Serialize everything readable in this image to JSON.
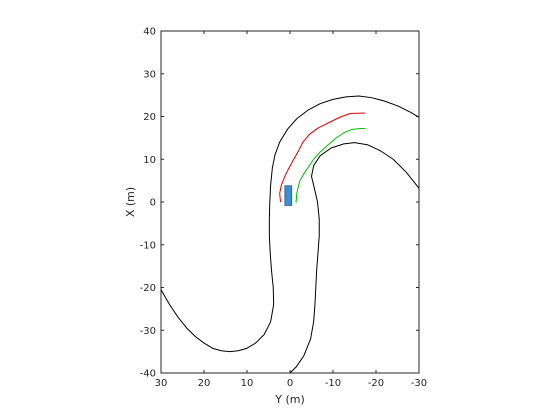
{
  "chart_data": {
    "type": "line",
    "xlabel": "Y (m)",
    "ylabel": "X (m)",
    "xlim": [
      30,
      -30
    ],
    "ylim": [
      -40,
      40
    ],
    "x_reversed": true,
    "grid": false,
    "box": true,
    "xticks": [
      30,
      20,
      10,
      0,
      -10,
      -20,
      -30
    ],
    "yticks": [
      -40,
      -30,
      -20,
      -10,
      0,
      10,
      20,
      30,
      40
    ],
    "series": [
      {
        "role": "road-edge-left",
        "color": "#000000",
        "points": [
          [
            30,
            -20.5
          ],
          [
            28,
            -24
          ],
          [
            26,
            -27
          ],
          [
            24,
            -29.5
          ],
          [
            22,
            -31.5
          ],
          [
            20,
            -33
          ],
          [
            18,
            -34.2
          ],
          [
            16,
            -34.8
          ],
          [
            14,
            -35
          ],
          [
            12,
            -34.8
          ],
          [
            10,
            -34.2
          ],
          [
            8,
            -33
          ],
          [
            6,
            -31
          ],
          [
            4.5,
            -28
          ],
          [
            3.8,
            -24
          ],
          [
            3.9,
            -20
          ],
          [
            4.3,
            -16
          ],
          [
            4.6,
            -12
          ],
          [
            4.8,
            -8
          ],
          [
            4.8,
            -4
          ],
          [
            4.7,
            0
          ],
          [
            4.5,
            4
          ],
          [
            4.1,
            8
          ],
          [
            3.5,
            11
          ],
          [
            2.4,
            14
          ],
          [
            0.6,
            17
          ],
          [
            -1.6,
            19.5
          ],
          [
            -4.2,
            21.5
          ],
          [
            -7,
            23
          ],
          [
            -10,
            24
          ],
          [
            -13,
            24.6
          ],
          [
            -16,
            24.8
          ],
          [
            -19,
            24.4
          ],
          [
            -22,
            23.6
          ],
          [
            -25,
            22.5
          ],
          [
            -28,
            21
          ],
          [
            -30,
            19.8
          ]
        ]
      },
      {
        "role": "road-edge-right",
        "color": "#000000",
        "points": [
          [
            0,
            -40
          ],
          [
            -1.5,
            -38.5
          ],
          [
            -3.2,
            -36
          ],
          [
            -4.8,
            -32
          ],
          [
            -5.5,
            -28
          ],
          [
            -5.8,
            -24
          ],
          [
            -6,
            -20
          ],
          [
            -6.2,
            -16
          ],
          [
            -6.5,
            -12
          ],
          [
            -6.8,
            -8
          ],
          [
            -6.8,
            -4
          ],
          [
            -6.4,
            0
          ],
          [
            -5.6,
            3.5
          ],
          [
            -5,
            6
          ],
          [
            -5.5,
            8.5
          ],
          [
            -7,
            10.8
          ],
          [
            -9.5,
            12.6
          ],
          [
            -12.5,
            13.6
          ],
          [
            -15,
            13.9
          ],
          [
            -18,
            13.4
          ],
          [
            -21,
            12
          ],
          [
            -24,
            10
          ],
          [
            -27,
            7
          ],
          [
            -29,
            4.5
          ],
          [
            -30,
            3.2
          ]
        ]
      },
      {
        "role": "predicted-path",
        "color": "#e00000",
        "points": [
          [
            2.2,
            0
          ],
          [
            2.4,
            2
          ],
          [
            2,
            4
          ],
          [
            1,
            6.5
          ],
          [
            -0.6,
            9.5
          ],
          [
            -2,
            12
          ],
          [
            -3,
            14
          ],
          [
            -4.5,
            15.8
          ],
          [
            -6.5,
            17.3
          ],
          [
            -9.5,
            18.8
          ],
          [
            -12,
            20
          ],
          [
            -14,
            20.7
          ],
          [
            -16.5,
            20.8
          ],
          [
            -17.5,
            20.8
          ]
        ]
      },
      {
        "role": "reference-path",
        "color": "#00c000",
        "points": [
          [
            -1.4,
            -0.2
          ],
          [
            -1.6,
            2.2
          ],
          [
            -2.3,
            5
          ],
          [
            -3.8,
            7.5
          ],
          [
            -5.5,
            10
          ],
          [
            -7,
            11.7
          ],
          [
            -8.8,
            13.3
          ],
          [
            -10.5,
            14.8
          ],
          [
            -12.5,
            16.2
          ],
          [
            -14.5,
            17
          ],
          [
            -16.5,
            17.2
          ],
          [
            -17.5,
            17.2
          ]
        ]
      }
    ],
    "vehicle": {
      "x_center": 0.4,
      "y_center": 1.5,
      "width": 1.6,
      "length": 4.6,
      "fill": "#3a8fd1",
      "stroke": "#1f5f8f"
    }
  }
}
